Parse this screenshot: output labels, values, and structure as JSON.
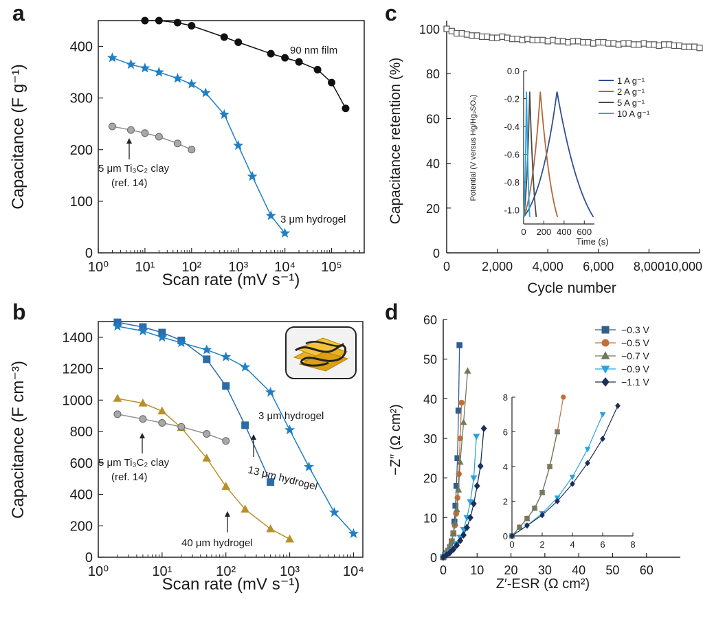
{
  "chart_data": [
    {
      "panel": "a",
      "type": "line",
      "xscale": "log",
      "xlabel": "Scan rate (mV s⁻¹)",
      "ylabel": "Capacitance (F g⁻¹)",
      "xlim": [
        1,
        500000
      ],
      "ylim": [
        0,
        450
      ],
      "xtick_labels": [
        "10⁰",
        "10¹",
        "10²",
        "10³",
        "10⁴",
        "10⁵"
      ],
      "ytick_labels": [
        "0",
        "100",
        "200",
        "300",
        "400"
      ],
      "grid": false,
      "series": [
        {
          "name": "90 nm film",
          "color": "#111111",
          "marker": "circle",
          "x": [
            10,
            20,
            50,
            100,
            500,
            1000,
            5000,
            10000,
            20000,
            50000,
            100000,
            200000
          ],
          "y": [
            450,
            450,
            446,
            440,
            418,
            408,
            386,
            378,
            370,
            355,
            330,
            280
          ]
        },
        {
          "name": "3 μm hydrogel",
          "color": "#1f7fc4",
          "marker": "star",
          "x": [
            2,
            5,
            10,
            20,
            50,
            100,
            200,
            500,
            1000,
            2000,
            5000,
            10000
          ],
          "y": [
            378,
            365,
            358,
            350,
            338,
            327,
            310,
            268,
            208,
            148,
            72,
            38
          ]
        },
        {
          "name": "5 μm Ti₃C₂ clay",
          "color": "#8f8f8f",
          "marker": "sphere",
          "x": [
            2,
            5,
            10,
            20,
            50,
            100
          ],
          "y": [
            245,
            238,
            232,
            225,
            212,
            200
          ]
        }
      ],
      "annotations": [
        "90 nm film",
        "3 μm hydrogel",
        "5 μm Ti₃C₂ clay",
        "(ref. 14)"
      ]
    },
    {
      "panel": "b",
      "type": "line",
      "xscale": "log",
      "xlabel": "Scan rate (mV s⁻¹)",
      "ylabel": "Capacitance (F cm⁻³)",
      "xlim": [
        1,
        14000
      ],
      "ylim": [
        0,
        1500
      ],
      "xtick_labels": [
        "10⁰",
        "10¹",
        "10²",
        "10³",
        "10⁴"
      ],
      "ytick_labels": [
        "0",
        "200",
        "400",
        "600",
        "800",
        "1000",
        "1200",
        "1400"
      ],
      "grid": false,
      "series": [
        {
          "name": "13 μm hydrogel",
          "color": "#2b6ca8",
          "marker": "square",
          "x": [
            2,
            5,
            10,
            20,
            50,
            100,
            200,
            500
          ],
          "y": [
            1495,
            1465,
            1430,
            1380,
            1260,
            1090,
            840,
            478
          ]
        },
        {
          "name": "3 μm hydrogel",
          "color": "#1f7fc4",
          "marker": "star",
          "x": [
            2,
            5,
            10,
            20,
            50,
            100,
            200,
            500,
            1000,
            2000,
            5000,
            10000
          ],
          "y": [
            1470,
            1440,
            1400,
            1365,
            1320,
            1275,
            1210,
            1050,
            810,
            575,
            285,
            150
          ]
        },
        {
          "name": "40 μm hydrogel",
          "color": "#b8902a",
          "marker": "triangle",
          "x": [
            2,
            5,
            10,
            20,
            50,
            100,
            200,
            500,
            1000
          ],
          "y": [
            1010,
            980,
            930,
            825,
            630,
            450,
            305,
            180,
            115
          ]
        },
        {
          "name": "5 μm Ti₃C₂ clay",
          "color": "#8f8f8f",
          "marker": "sphere",
          "x": [
            2,
            5,
            10,
            20,
            50,
            100
          ],
          "y": [
            910,
            880,
            855,
            830,
            785,
            740
          ]
        }
      ],
      "annotations": [
        "3 μm hydrogel",
        "13 μm hydrogel",
        "40 μm hydrogel",
        "5 μm Ti₃C₂ clay",
        "(ref. 14)"
      ]
    },
    {
      "panel": "c",
      "type": "line",
      "xlabel": "Cycle number",
      "ylabel": "Capacitance retention (%)",
      "xlim": [
        0,
        10000
      ],
      "ylim": [
        0,
        100
      ],
      "xtick_labels": [
        "0",
        "2,000",
        "4,000",
        "6,000",
        "8,000",
        "10,000"
      ],
      "ytick_labels": [
        "0",
        "20",
        "40",
        "60",
        "80",
        "100"
      ],
      "grid": false,
      "series": [
        {
          "color": "#555555",
          "marker": "open-square",
          "x": [
            0,
            200,
            400,
            600,
            800,
            1000,
            1200,
            1400,
            1600,
            1800,
            2000,
            2200,
            2400,
            2600,
            2800,
            3000,
            3200,
            3400,
            3600,
            3800,
            4000,
            4200,
            4400,
            4600,
            4800,
            5000,
            5200,
            5400,
            5600,
            5800,
            6000,
            6200,
            6400,
            6600,
            6800,
            7000,
            7200,
            7400,
            7600,
            7800,
            8000,
            8200,
            8400,
            8600,
            8800,
            9000,
            9200,
            9400,
            9600,
            9800,
            10000
          ],
          "y": [
            100,
            99,
            98,
            98,
            97.5,
            97,
            97,
            96.5,
            96.5,
            96,
            96,
            96.5,
            96,
            95.5,
            95.5,
            95,
            95.5,
            95,
            95,
            95,
            94.5,
            95,
            94.5,
            94.5,
            94,
            94.5,
            94.5,
            94,
            94,
            93.5,
            94,
            94,
            93.5,
            93.5,
            93,
            93.5,
            93.5,
            93,
            93,
            93.5,
            93,
            93,
            92.5,
            93,
            93,
            92.5,
            92.5,
            92,
            92,
            92,
            91.5
          ]
        }
      ],
      "inset": {
        "type": "line",
        "xlabel": "Time (s)",
        "ylabel": "Potential (V versus Hg/Hg₂SO₄)",
        "xlim": [
          0,
          700
        ],
        "ylim": [
          -1.1,
          0
        ],
        "xtick_labels": [
          "0",
          "200",
          "400",
          "600"
        ],
        "ytick_labels": [
          "0.0",
          "-0.2",
          "-0.4",
          "-0.6",
          "-0.8",
          "-1.0"
        ],
        "series": [
          {
            "name": "1 A g⁻¹",
            "color": "#2f4f8f",
            "x": [
              0,
              330,
              690
            ],
            "y": [
              -1.05,
              -0.15,
              -1.05
            ]
          },
          {
            "name": "2 A g⁻¹",
            "color": "#b5653a",
            "x": [
              0,
              165,
              335
            ],
            "y": [
              -1.05,
              -0.15,
              -1.05
            ]
          },
          {
            "name": "5 A g⁻¹",
            "color": "#4a4a4a",
            "x": [
              0,
              60,
              125
            ],
            "y": [
              -1.05,
              -0.15,
              -1.05
            ]
          },
          {
            "name": "10 A g⁻¹",
            "color": "#2aa3e0",
            "x": [
              0,
              28,
              60
            ],
            "y": [
              -1.05,
              -0.15,
              -1.05
            ]
          }
        ]
      }
    },
    {
      "panel": "d",
      "type": "scatter",
      "xlabel": "Z′-ESR (Ω cm²)",
      "ylabel": "−Z″ (Ω cm²)",
      "xlim": [
        0,
        70
      ],
      "ylim": [
        0,
        60
      ],
      "xtick_labels": [
        "0",
        "10",
        "20",
        "30",
        "40",
        "50",
        "60"
      ],
      "ytick_labels": [
        "0",
        "10",
        "20",
        "30",
        "40",
        "50",
        "60"
      ],
      "grid": false,
      "series": [
        {
          "name": "−0.3 V",
          "color": "#2f5f8f",
          "marker": "square",
          "x": [
            0,
            0.5,
            1,
            1.5,
            2,
            2.5,
            3,
            3.3,
            3.6,
            3.9,
            4.2,
            4.5,
            4.8
          ],
          "y": [
            0,
            0.5,
            1,
            1.6,
            2.5,
            4,
            6,
            9,
            13,
            18,
            25,
            37,
            53.5
          ]
        },
        {
          "name": "−0.5 V",
          "color": "#c0703a",
          "marker": "circle",
          "x": [
            0,
            0.5,
            1,
            1.5,
            2,
            2.5,
            3,
            3.4,
            3.8,
            4.2,
            4.6,
            5.0,
            5.4
          ],
          "y": [
            0,
            0.5,
            1,
            1.6,
            2.5,
            4,
            6,
            8,
            11,
            15,
            21,
            30,
            39
          ]
        },
        {
          "name": "−0.7 V",
          "color": "#6f7a5a",
          "marker": "triangle",
          "x": [
            0,
            0.5,
            1,
            1.5,
            2,
            2.5,
            3,
            3.5,
            4,
            4.5,
            5,
            6,
            7.2
          ],
          "y": [
            0,
            0.5,
            1,
            1.6,
            2.5,
            4,
            6,
            8.5,
            12,
            17,
            24,
            34,
            47
          ]
        },
        {
          "name": "−0.9 V",
          "color": "#29a3e0",
          "marker": "triangle-down",
          "x": [
            0,
            1,
            2,
            3,
            4,
            5,
            6,
            7,
            8,
            9,
            9.8
          ],
          "y": [
            0,
            0.6,
            1.3,
            2.2,
            3.4,
            5,
            7,
            10,
            14,
            20,
            30.5
          ]
        },
        {
          "name": "−1.1 V",
          "color": "#1a2f5a",
          "marker": "diamond",
          "x": [
            0,
            1,
            2,
            3,
            4,
            5,
            6,
            7,
            8,
            9,
            10,
            11,
            12
          ],
          "y": [
            0,
            0.6,
            1.2,
            2,
            3,
            4.2,
            5.6,
            7.5,
            10,
            13.5,
            18,
            23,
            32.5
          ]
        }
      ],
      "inset": {
        "xlim": [
          0,
          8
        ],
        "ylim": [
          0,
          8
        ],
        "xtick_labels": [
          "0",
          "2",
          "4",
          "6",
          "8"
        ],
        "ytick_labels": [
          "0",
          "2",
          "4",
          "6",
          "8"
        ]
      }
    }
  ],
  "labels": {
    "a": "a",
    "b": "b",
    "c": "c",
    "d": "d",
    "a_90nm": "90 nm film",
    "a_3um": "3 μm hydrogel",
    "a_clay1": "5 μm Ti₃C₂ clay",
    "a_clay2": "(ref. 14)",
    "b_3um": "3 μm hydrogel",
    "b_13um": "13 μm hydrogel",
    "b_40um": "40 μm hydrogel",
    "b_clay1": "5 μm Ti₃C₂ clay",
    "b_clay2": "(ref. 14)"
  }
}
